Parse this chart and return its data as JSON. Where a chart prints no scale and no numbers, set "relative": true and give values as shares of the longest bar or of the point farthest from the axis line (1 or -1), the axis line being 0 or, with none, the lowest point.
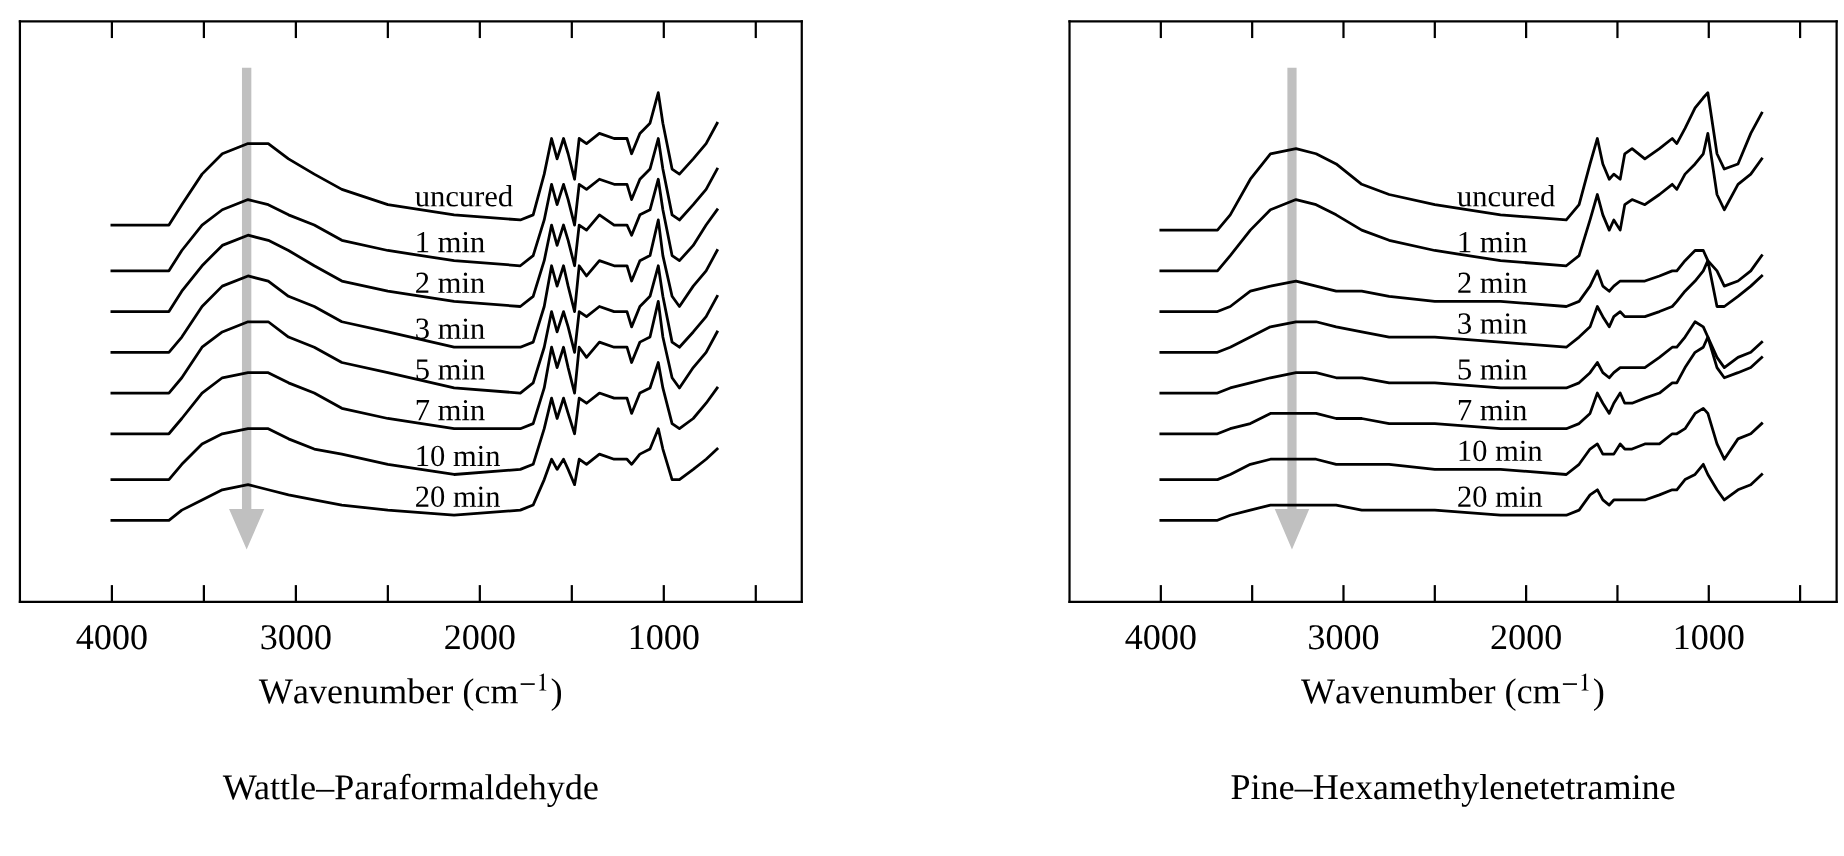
{
  "chart_data": [
    {
      "type": "line",
      "relative": true,
      "title": "Wattle–Paraformaldehyde",
      "xlabel": "Wavenumber (cm$^{−1}$)",
      "tick_labels": "x",
      "xlim": [
        4500,
        250
      ],
      "xticks": [
        4000,
        {
          "value": 3500,
          "label": null
        },
        3000,
        {
          "value": 2500,
          "label": null
        },
        2000,
        {
          "value": 1500,
          "label": null
        },
        1000,
        {
          "value": 500,
          "label": null
        }
      ],
      "x": [
        4000,
        3690,
        3620,
        3510,
        3400,
        3260,
        3150,
        3040,
        2900,
        2750,
        2500,
        2140,
        1780,
        1710,
        1650,
        1610,
        1580,
        1545,
        1520,
        1485,
        1460,
        1420,
        1350,
        1270,
        1200,
        1175,
        1130,
        1075,
        1030,
        1005,
        955,
        915,
        840,
        770,
        710
      ],
      "series": [
        {
          "name": "uncured",
          "color": "#000000",
          "values": [
            0.74,
            0.74,
            0.78,
            0.84,
            0.88,
            0.9,
            0.9,
            0.87,
            0.84,
            0.81,
            0.78,
            0.76,
            0.75,
            0.76,
            0.84,
            0.91,
            0.87,
            0.91,
            0.88,
            0.83,
            0.91,
            0.9,
            0.92,
            0.91,
            0.91,
            0.88,
            0.92,
            0.94,
            1.0,
            0.94,
            0.85,
            0.84,
            0.87,
            0.9,
            0.94
          ]
        },
        {
          "name": "1 min",
          "color": "#000000",
          "values": [
            0.65,
            0.65,
            0.69,
            0.74,
            0.77,
            0.79,
            0.78,
            0.76,
            0.74,
            0.71,
            0.69,
            0.67,
            0.66,
            0.68,
            0.75,
            0.82,
            0.78,
            0.82,
            0.79,
            0.74,
            0.82,
            0.81,
            0.83,
            0.82,
            0.82,
            0.79,
            0.83,
            0.85,
            0.91,
            0.85,
            0.76,
            0.75,
            0.78,
            0.81,
            0.85
          ]
        },
        {
          "name": "2 min",
          "color": "#000000",
          "values": [
            0.57,
            0.57,
            0.61,
            0.66,
            0.7,
            0.72,
            0.71,
            0.69,
            0.66,
            0.63,
            0.61,
            0.59,
            0.58,
            0.6,
            0.67,
            0.74,
            0.7,
            0.74,
            0.71,
            0.66,
            0.74,
            0.73,
            0.76,
            0.74,
            0.74,
            0.72,
            0.76,
            0.77,
            0.83,
            0.77,
            0.68,
            0.67,
            0.7,
            0.74,
            0.77
          ]
        },
        {
          "name": "3 min",
          "color": "#000000",
          "values": [
            0.49,
            0.49,
            0.52,
            0.58,
            0.62,
            0.64,
            0.63,
            0.6,
            0.58,
            0.55,
            0.53,
            0.5,
            0.5,
            0.51,
            0.58,
            0.66,
            0.62,
            0.66,
            0.62,
            0.57,
            0.66,
            0.64,
            0.67,
            0.66,
            0.66,
            0.63,
            0.67,
            0.68,
            0.75,
            0.68,
            0.6,
            0.58,
            0.62,
            0.65,
            0.69
          ]
        },
        {
          "name": "5 min",
          "color": "#000000",
          "values": [
            0.41,
            0.41,
            0.44,
            0.5,
            0.53,
            0.55,
            0.55,
            0.52,
            0.5,
            0.47,
            0.45,
            0.42,
            0.41,
            0.43,
            0.5,
            0.57,
            0.53,
            0.57,
            0.54,
            0.49,
            0.57,
            0.56,
            0.58,
            0.57,
            0.57,
            0.54,
            0.58,
            0.6,
            0.66,
            0.6,
            0.51,
            0.5,
            0.53,
            0.56,
            0.6
          ]
        },
        {
          "name": "7 min",
          "color": "#000000",
          "values": [
            0.33,
            0.33,
            0.36,
            0.41,
            0.44,
            0.45,
            0.45,
            0.43,
            0.41,
            0.38,
            0.36,
            0.34,
            0.34,
            0.35,
            0.42,
            0.5,
            0.46,
            0.5,
            0.46,
            0.41,
            0.5,
            0.48,
            0.51,
            0.5,
            0.5,
            0.47,
            0.51,
            0.52,
            0.59,
            0.52,
            0.44,
            0.42,
            0.46,
            0.49,
            0.53
          ]
        },
        {
          "name": "10 min",
          "color": "#000000",
          "values": [
            0.24,
            0.24,
            0.27,
            0.31,
            0.33,
            0.34,
            0.34,
            0.32,
            0.3,
            0.29,
            0.27,
            0.25,
            0.26,
            0.27,
            0.34,
            0.4,
            0.36,
            0.4,
            0.37,
            0.33,
            0.4,
            0.39,
            0.41,
            0.4,
            0.4,
            0.37,
            0.41,
            0.42,
            0.47,
            0.42,
            0.35,
            0.34,
            0.36,
            0.39,
            0.42
          ]
        },
        {
          "name": "20 min",
          "color": "#000000",
          "values": [
            0.16,
            0.16,
            0.18,
            0.2,
            0.22,
            0.23,
            0.22,
            0.21,
            0.2,
            0.19,
            0.18,
            0.17,
            0.18,
            0.19,
            0.24,
            0.28,
            0.26,
            0.28,
            0.26,
            0.23,
            0.28,
            0.27,
            0.29,
            0.28,
            0.28,
            0.27,
            0.29,
            0.3,
            0.34,
            0.3,
            0.24,
            0.24,
            0.26,
            0.28,
            0.3
          ]
        }
      ]
    },
    {
      "type": "line",
      "relative": true,
      "title": "Pine–Hexamethylenetetramine",
      "xlabel": "Wavenumber (cm$^{−1}$)",
      "tick_labels": "x",
      "xlim": [
        4500,
        300
      ],
      "xticks": [
        4000,
        {
          "value": 3500,
          "label": null
        },
        3000,
        {
          "value": 2500,
          "label": null
        },
        2000,
        {
          "value": 1500,
          "label": null
        },
        1000,
        {
          "value": 500,
          "label": null
        }
      ],
      "x": [
        4000,
        3690,
        3620,
        3510,
        3400,
        3260,
        3150,
        3040,
        2900,
        2750,
        2500,
        2140,
        1780,
        1710,
        1650,
        1610,
        1580,
        1545,
        1520,
        1485,
        1460,
        1420,
        1350,
        1270,
        1200,
        1175,
        1130,
        1075,
        1030,
        1005,
        955,
        915,
        840,
        770,
        710
      ],
      "series": [
        {
          "name": "uncured",
          "color": "#000000",
          "values": [
            0.73,
            0.73,
            0.76,
            0.83,
            0.88,
            0.89,
            0.88,
            0.86,
            0.82,
            0.8,
            0.78,
            0.76,
            0.75,
            0.78,
            0.86,
            0.91,
            0.86,
            0.83,
            0.84,
            0.83,
            0.88,
            0.89,
            0.87,
            0.89,
            0.91,
            0.9,
            0.93,
            0.97,
            0.99,
            1.0,
            0.88,
            0.85,
            0.86,
            0.92,
            0.96
          ]
        },
        {
          "name": "1 min",
          "color": "#000000",
          "values": [
            0.65,
            0.65,
            0.68,
            0.73,
            0.77,
            0.79,
            0.78,
            0.76,
            0.73,
            0.71,
            0.69,
            0.67,
            0.66,
            0.68,
            0.75,
            0.8,
            0.76,
            0.73,
            0.75,
            0.73,
            0.78,
            0.79,
            0.78,
            0.8,
            0.82,
            0.81,
            0.84,
            0.86,
            0.88,
            0.92,
            0.8,
            0.77,
            0.82,
            0.84,
            0.87
          ]
        },
        {
          "name": "2 min",
          "color": "#000000",
          "values": [
            0.57,
            0.57,
            0.58,
            0.61,
            0.62,
            0.63,
            0.62,
            0.61,
            0.61,
            0.6,
            0.59,
            0.59,
            0.58,
            0.59,
            0.62,
            0.65,
            0.62,
            0.61,
            0.62,
            0.63,
            0.63,
            0.63,
            0.63,
            0.64,
            0.65,
            0.65,
            0.67,
            0.69,
            0.69,
            0.67,
            0.65,
            0.62,
            0.63,
            0.65,
            0.68
          ]
        },
        {
          "name": "3 min",
          "color": "#000000",
          "values": [
            0.49,
            0.49,
            0.5,
            0.52,
            0.54,
            0.55,
            0.55,
            0.54,
            0.53,
            0.52,
            0.52,
            0.51,
            0.5,
            0.52,
            0.54,
            0.58,
            0.56,
            0.54,
            0.56,
            0.57,
            0.56,
            0.56,
            0.56,
            0.57,
            0.58,
            0.59,
            0.61,
            0.63,
            0.65,
            0.67,
            0.58,
            0.58,
            0.6,
            0.62,
            0.64
          ]
        },
        {
          "name": "5 min",
          "color": "#000000",
          "values": [
            0.41,
            0.41,
            0.42,
            0.43,
            0.44,
            0.45,
            0.45,
            0.44,
            0.44,
            0.43,
            0.43,
            0.42,
            0.42,
            0.43,
            0.45,
            0.47,
            0.45,
            0.44,
            0.45,
            0.46,
            0.46,
            0.46,
            0.46,
            0.48,
            0.5,
            0.5,
            0.52,
            0.55,
            0.54,
            0.52,
            0.48,
            0.46,
            0.48,
            0.49,
            0.51
          ]
        },
        {
          "name": "7 min",
          "color": "#000000",
          "values": [
            0.33,
            0.33,
            0.34,
            0.35,
            0.37,
            0.37,
            0.37,
            0.36,
            0.36,
            0.35,
            0.35,
            0.34,
            0.34,
            0.35,
            0.37,
            0.41,
            0.39,
            0.37,
            0.39,
            0.41,
            0.39,
            0.39,
            0.4,
            0.41,
            0.43,
            0.43,
            0.46,
            0.49,
            0.5,
            0.52,
            0.46,
            0.44,
            0.45,
            0.46,
            0.48
          ]
        },
        {
          "name": "10 min",
          "color": "#000000",
          "values": [
            0.24,
            0.24,
            0.25,
            0.27,
            0.28,
            0.28,
            0.28,
            0.27,
            0.27,
            0.27,
            0.26,
            0.26,
            0.25,
            0.27,
            0.3,
            0.31,
            0.29,
            0.29,
            0.29,
            0.31,
            0.3,
            0.3,
            0.31,
            0.31,
            0.33,
            0.33,
            0.34,
            0.37,
            0.38,
            0.37,
            0.31,
            0.28,
            0.32,
            0.33,
            0.35
          ]
        },
        {
          "name": "20 min",
          "color": "#000000",
          "values": [
            0.16,
            0.16,
            0.17,
            0.18,
            0.19,
            0.19,
            0.19,
            0.19,
            0.18,
            0.18,
            0.18,
            0.17,
            0.17,
            0.18,
            0.21,
            0.22,
            0.2,
            0.19,
            0.2,
            0.2,
            0.2,
            0.2,
            0.2,
            0.21,
            0.22,
            0.22,
            0.24,
            0.25,
            0.27,
            0.25,
            0.22,
            0.2,
            0.22,
            0.23,
            0.25
          ]
        }
      ]
    }
  ]
}
